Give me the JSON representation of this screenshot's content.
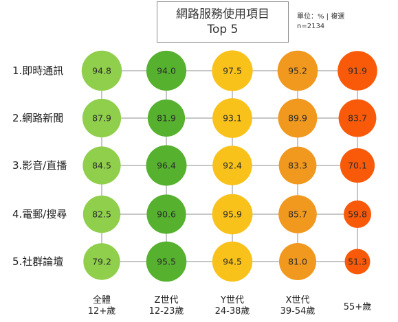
{
  "title": {
    "line1": "網路服務使用項目",
    "line2": "Top 5"
  },
  "unit_note": {
    "line1": "單位：% | 複選",
    "line2": "n=2134"
  },
  "chart_data": {
    "type": "bubble-matrix",
    "title": "網路服務使用項目 Top 5",
    "unit": "%",
    "rows": [
      "1.即時通訊",
      "2.網路新聞",
      "3.影音/直播",
      "4.電郵/搜尋",
      "5.社群論壇"
    ],
    "columns": [
      {
        "line1": "全體",
        "line2": "12+歲",
        "color": "#8fcf4b"
      },
      {
        "line1": "Z世代",
        "line2": "12-23歲",
        "color": "#56b12e"
      },
      {
        "line1": "Y世代",
        "line2": "24-38歲",
        "color": "#f8c21a"
      },
      {
        "line1": "X世代",
        "line2": "39-54歲",
        "color": "#f1981e"
      },
      {
        "line1": "55+歲",
        "line2": "",
        "color": "#f85a0a"
      }
    ],
    "values": [
      [
        94.8,
        94.0,
        97.5,
        95.2,
        91.9
      ],
      [
        87.9,
        81.9,
        93.1,
        89.9,
        83.7
      ],
      [
        84.5,
        96.4,
        92.4,
        83.3,
        70.1
      ],
      [
        82.5,
        90.6,
        95.9,
        85.7,
        59.8
      ],
      [
        79.2,
        95.5,
        94.5,
        81.0,
        51.3
      ]
    ],
    "grid_line_color": "#c6c6c6"
  }
}
